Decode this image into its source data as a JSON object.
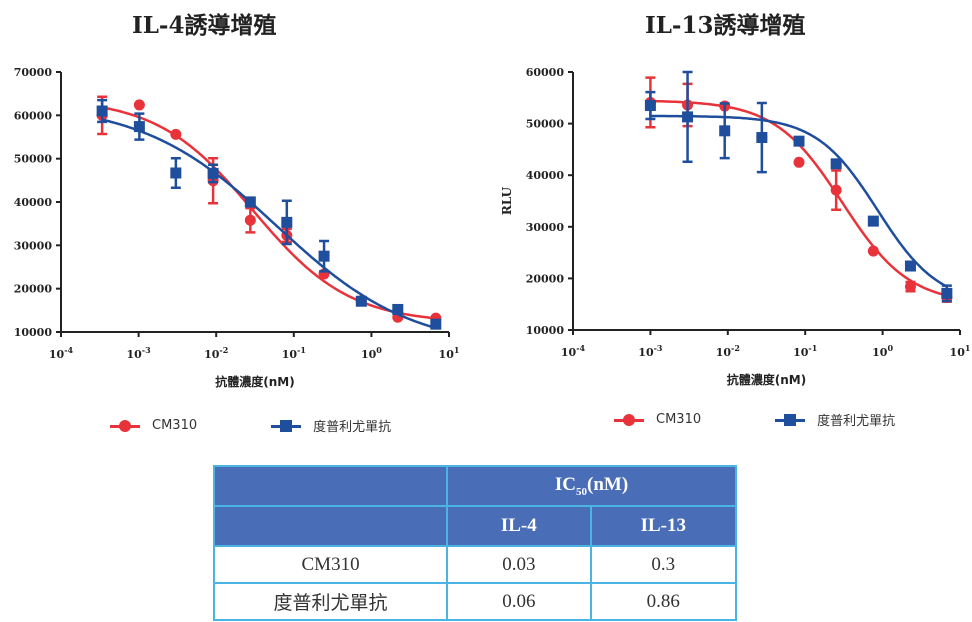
{
  "chart_data": [
    {
      "type": "line",
      "title": "IL-4誘導增殖",
      "xlabel": "抗體濃度(nM)",
      "ylabel": "",
      "xscale": "log",
      "xlim_log10": [
        -4,
        1
      ],
      "ylim": [
        10000,
        70000
      ],
      "yticks": [
        10000,
        20000,
        30000,
        40000,
        50000,
        60000,
        70000
      ],
      "xticks_log10": [
        -4,
        -3,
        -2,
        -1,
        0,
        1
      ],
      "grid": false,
      "series": [
        {
          "name": "CM310",
          "color": "#e8333a",
          "marker": "circle",
          "x_log10": [
            -3.47,
            -2.99,
            -2.52,
            -2.04,
            -1.56,
            -1.09,
            -0.61,
            -0.13,
            0.34,
            0.83
          ],
          "y": [
            60000,
            62400,
            55600,
            44900,
            35800,
            32300,
            23400,
            17200,
            13400,
            13200
          ],
          "err": [
            4300,
            0,
            0,
            5200,
            2800,
            1500,
            0,
            0,
            0,
            0
          ],
          "fit": {
            "top": 64000,
            "bottom": 12000,
            "ic50": 0.03,
            "hill": 0.7
          }
        },
        {
          "name": "度普利尤單抗",
          "color": "#1f4e9c",
          "marker": "square",
          "x_log10": [
            -3.47,
            -2.99,
            -2.52,
            -2.04,
            -1.56,
            -1.09,
            -0.61,
            -0.13,
            0.34,
            0.83
          ],
          "y": [
            61000,
            57400,
            46700,
            46600,
            40000,
            35300,
            27500,
            17100,
            15200,
            11800
          ],
          "err": [
            2500,
            3000,
            3400,
            2000,
            1000,
            5000,
            3500,
            0,
            0,
            0
          ],
          "fit": {
            "top": 63000,
            "bottom": 6000,
            "ic50": 0.06,
            "hill": 0.5
          }
        }
      ]
    },
    {
      "type": "line",
      "title": "IL-13誘導增殖",
      "xlabel": "抗體濃度(nM)",
      "ylabel": "RLU",
      "xscale": "log",
      "xlim_log10": [
        -4,
        1
      ],
      "ylim": [
        10000,
        60000
      ],
      "yticks": [
        10000,
        20000,
        30000,
        40000,
        50000,
        60000
      ],
      "xticks_log10": [
        -4,
        -3,
        -2,
        -1,
        0,
        1
      ],
      "grid": false,
      "series": [
        {
          "name": "CM310",
          "color": "#e8333a",
          "marker": "circle",
          "x_log10": [
            -3.0,
            -2.52,
            -2.04,
            -1.56,
            -1.08,
            -0.6,
            -0.12,
            0.36,
            0.83
          ],
          "y": [
            54100,
            53600,
            53400,
            47300,
            42500,
            37100,
            25300,
            18400,
            16300
          ],
          "err": [
            4800,
            4100,
            0,
            0,
            0,
            3800,
            0,
            900,
            800
          ],
          "fit": {
            "top": 54500,
            "bottom": 15000,
            "ic50": 0.3,
            "hill": 1.0
          }
        },
        {
          "name": "度普利尤單抗",
          "color": "#1f4e9c",
          "marker": "square",
          "x_log10": [
            -3.0,
            -2.52,
            -2.04,
            -1.56,
            -1.08,
            -0.6,
            -0.12,
            0.36,
            0.83
          ],
          "y": [
            53500,
            51300,
            48600,
            47300,
            46600,
            42200,
            31100,
            22400,
            17100
          ],
          "err": [
            2600,
            8700,
            5300,
            6700,
            0,
            0,
            0,
            0,
            1500
          ],
          "fit": {
            "top": 51500,
            "bottom": 15000,
            "ic50": 0.86,
            "hill": 1.1
          }
        }
      ]
    }
  ],
  "legends": {
    "left": [
      "CM310",
      "度普利尤單抗"
    ],
    "right": [
      "CM310",
      "度普利尤單抗"
    ]
  },
  "table": {
    "header_group": "IC50(nM)",
    "header_group_main": "IC",
    "header_group_sub": "50",
    "header_group_unit": "(nM)",
    "columns": [
      "IL-4",
      "IL-13"
    ],
    "rows": [
      {
        "name": "CM310",
        "values": [
          "0.03",
          "0.3"
        ]
      },
      {
        "name": "度普利尤單抗",
        "values": [
          "0.06",
          "0.86"
        ]
      }
    ]
  },
  "colors": {
    "red": "#e8333a",
    "blue": "#1f4e9c",
    "table_header": "#4a6db7",
    "table_border": "#4ab4e2"
  }
}
